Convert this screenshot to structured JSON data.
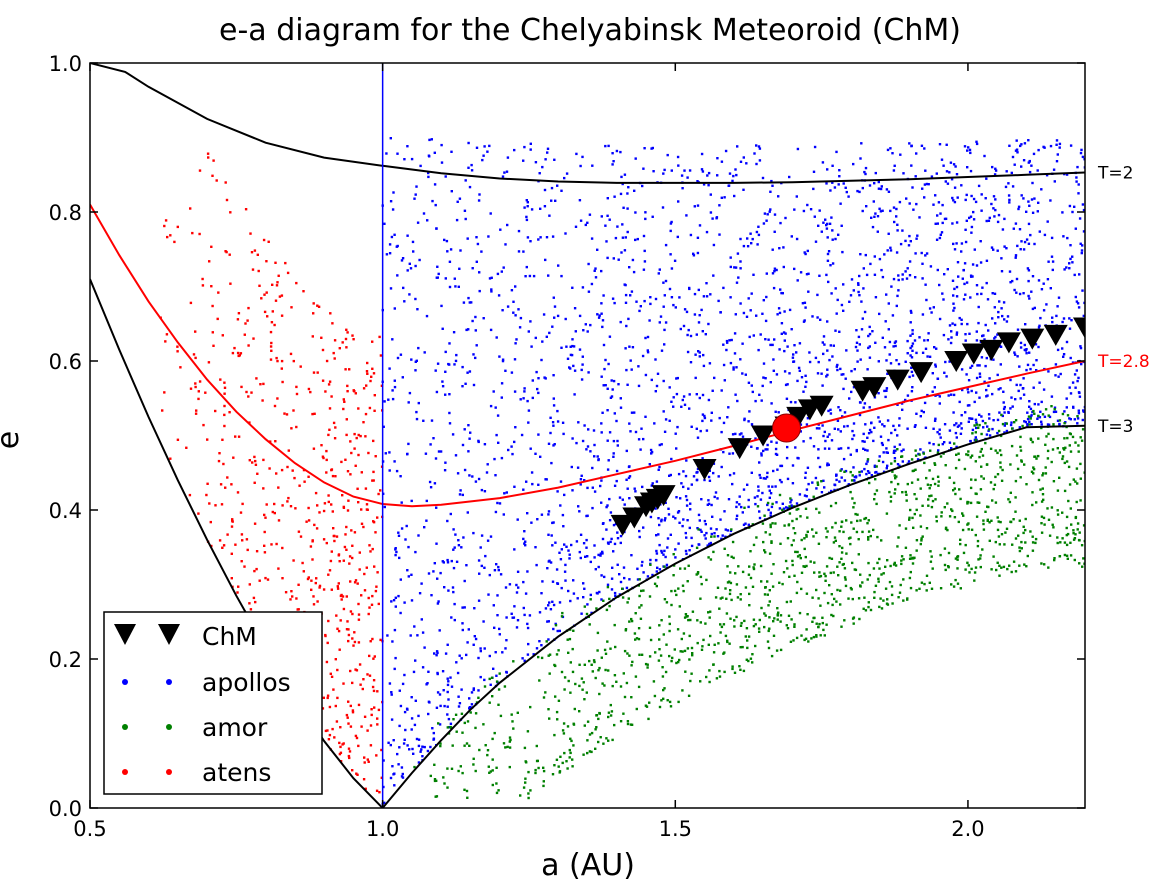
{
  "chart_data": {
    "type": "scatter",
    "title": "e-a diagram for the Chelyabinsk Meteoroid (ChM)",
    "xlabel": "a (AU)",
    "ylabel": "e",
    "xlim": [
      0.5,
      2.2
    ],
    "ylim": [
      0.0,
      1.0
    ],
    "xticks": [
      {
        "value": 0.5,
        "label": "0.5"
      },
      {
        "value": 1.0,
        "label": "1.0"
      },
      {
        "value": 1.5,
        "label": "1.5"
      },
      {
        "value": 2.0,
        "label": "2.0"
      }
    ],
    "yticks": [
      {
        "value": 0.0,
        "label": "0.0"
      },
      {
        "value": 0.2,
        "label": "0.2"
      },
      {
        "value": 0.4,
        "label": "0.4"
      },
      {
        "value": 0.6,
        "label": "0.6"
      },
      {
        "value": 0.8,
        "label": "0.8"
      },
      {
        "value": 1.0,
        "label": "1.0"
      }
    ],
    "grid": false,
    "legend_placement": "lower-left",
    "reference_lines": [
      {
        "orientation": "vertical",
        "x": 1.0,
        "color": "#0000ff"
      }
    ],
    "curves": [
      {
        "label": "T=2",
        "color": "#000000",
        "label_color": "#000000",
        "points": [
          [
            0.5,
            1.0
          ],
          [
            0.56,
            0.988
          ],
          [
            0.6,
            0.968
          ],
          [
            0.7,
            0.925
          ],
          [
            0.8,
            0.893
          ],
          [
            0.9,
            0.873
          ],
          [
            1.0,
            0.862
          ],
          [
            1.1,
            0.852
          ],
          [
            1.2,
            0.845
          ],
          [
            1.3,
            0.841
          ],
          [
            1.4,
            0.839
          ],
          [
            1.5,
            0.839
          ],
          [
            1.6,
            0.839
          ],
          [
            1.7,
            0.84
          ],
          [
            1.8,
            0.842
          ],
          [
            1.9,
            0.844
          ],
          [
            2.0,
            0.847
          ],
          [
            2.1,
            0.85
          ],
          [
            2.2,
            0.853
          ]
        ]
      },
      {
        "label": "T=2.8",
        "color": "#ff0000",
        "label_color": "#ff0000",
        "points": [
          [
            0.5,
            0.81
          ],
          [
            0.55,
            0.742
          ],
          [
            0.6,
            0.68
          ],
          [
            0.65,
            0.625
          ],
          [
            0.7,
            0.575
          ],
          [
            0.75,
            0.532
          ],
          [
            0.8,
            0.495
          ],
          [
            0.85,
            0.463
          ],
          [
            0.9,
            0.437
          ],
          [
            0.95,
            0.418
          ],
          [
            1.0,
            0.408
          ],
          [
            1.05,
            0.405
          ],
          [
            1.1,
            0.407
          ],
          [
            1.2,
            0.416
          ],
          [
            1.3,
            0.43
          ],
          [
            1.4,
            0.448
          ],
          [
            1.5,
            0.466
          ],
          [
            1.6,
            0.486
          ],
          [
            1.7,
            0.507
          ],
          [
            1.8,
            0.527
          ],
          [
            1.9,
            0.547
          ],
          [
            2.0,
            0.565
          ],
          [
            2.1,
            0.583
          ],
          [
            2.2,
            0.6
          ]
        ]
      },
      {
        "label": "T=3",
        "color": "#000000",
        "label_color": "#000000",
        "points": [
          [
            0.5,
            0.71
          ],
          [
            0.55,
            0.615
          ],
          [
            0.6,
            0.525
          ],
          [
            0.65,
            0.44
          ],
          [
            0.7,
            0.36
          ],
          [
            0.75,
            0.285
          ],
          [
            0.8,
            0.215
          ],
          [
            0.85,
            0.15
          ],
          [
            0.9,
            0.09
          ],
          [
            0.95,
            0.04
          ],
          [
            1.0,
            0.0
          ],
          [
            1.05,
            0.047
          ],
          [
            1.1,
            0.091
          ],
          [
            1.15,
            0.132
          ],
          [
            1.2,
            0.168
          ],
          [
            1.3,
            0.23
          ],
          [
            1.4,
            0.283
          ],
          [
            1.5,
            0.328
          ],
          [
            1.6,
            0.368
          ],
          [
            1.7,
            0.403
          ],
          [
            1.8,
            0.434
          ],
          [
            1.9,
            0.462
          ],
          [
            2.0,
            0.488
          ],
          [
            2.1,
            0.511
          ],
          [
            2.2,
            0.513
          ]
        ]
      }
    ],
    "series": [
      {
        "name": "ChM",
        "marker": "triangle-down",
        "color": "#000000",
        "points": [
          [
            1.41,
            0.38
          ],
          [
            1.43,
            0.39
          ],
          [
            1.45,
            0.405
          ],
          [
            1.46,
            0.41
          ],
          [
            1.47,
            0.415
          ],
          [
            1.48,
            0.42
          ],
          [
            1.55,
            0.455
          ],
          [
            1.61,
            0.483
          ],
          [
            1.65,
            0.5
          ],
          [
            1.69,
            0.512
          ],
          [
            1.71,
            0.525
          ],
          [
            1.73,
            0.535
          ],
          [
            1.75,
            0.54
          ],
          [
            1.82,
            0.56
          ],
          [
            1.84,
            0.565
          ],
          [
            1.88,
            0.575
          ],
          [
            1.92,
            0.585
          ],
          [
            1.98,
            0.6
          ],
          [
            2.01,
            0.61
          ],
          [
            2.04,
            0.615
          ],
          [
            2.07,
            0.625
          ],
          [
            2.11,
            0.63
          ],
          [
            2.15,
            0.635
          ],
          [
            2.2,
            0.645
          ],
          [
            2.22,
            0.65
          ]
        ]
      },
      {
        "name": "apollos",
        "marker": "dot",
        "color": "#0000ff",
        "points": []
      },
      {
        "name": "amor",
        "marker": "dot",
        "color": "#008000",
        "points": []
      },
      {
        "name": "atens",
        "marker": "dot",
        "color": "#ff0000",
        "points": []
      }
    ],
    "highlight_point": {
      "x": 1.69,
      "y": 0.51,
      "color": "#ff0000"
    }
  }
}
